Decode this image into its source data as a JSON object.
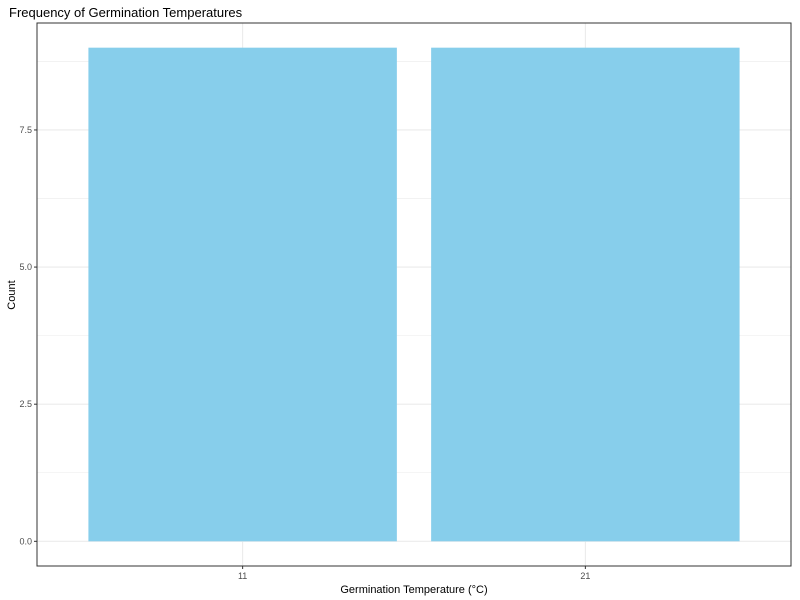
{
  "chart_data": {
    "type": "bar",
    "title": "Frequency of Germination Temperatures",
    "xlabel": "Germination Temperature (°C)",
    "ylabel": "Count",
    "categories": [
      "11",
      "21"
    ],
    "values": [
      9,
      9
    ],
    "ylim": [
      -0.45,
      9.45
    ],
    "yticks": [
      0.0,
      2.5,
      5.0,
      7.5
    ],
    "ytick_labels": [
      "0.0",
      "2.5",
      "5.0",
      "7.5"
    ],
    "grid": true,
    "legend": "none",
    "bar_color": "#87CEEB",
    "grid_color": "#ebebeb",
    "border_color": "#333333"
  }
}
